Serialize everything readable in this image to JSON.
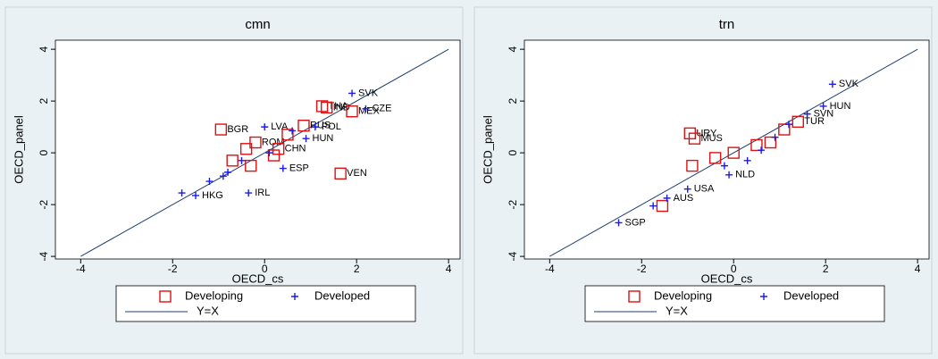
{
  "chart_data": [
    {
      "type": "scatter",
      "title": "cmn",
      "xlabel": "OECD_cs",
      "ylabel": "OECD_panel",
      "xlim": [
        -4.55,
        4.25
      ],
      "ylim": [
        -4.1,
        4.35
      ],
      "xticks": [
        -4,
        -2,
        0,
        2,
        4
      ],
      "yticks": [
        -4,
        -2,
        0,
        2,
        4
      ],
      "series": [
        {
          "name": "Developing",
          "marker": "square",
          "color": "#dd1111",
          "x": [
            1.25,
            1.35,
            1.9,
            -0.95,
            0.85,
            -0.2,
            0.3,
            1.65,
            -0.7,
            -0.4,
            -0.3,
            0.5,
            0.2
          ],
          "values": [
            1.8,
            1.75,
            1.6,
            0.9,
            1.05,
            0.4,
            0.15,
            -0.8,
            -0.3,
            0.15,
            -0.5,
            0.7,
            -0.1
          ],
          "labels": [
            "THA",
            "IND",
            "MEX",
            "BGR",
            "RUS",
            "ROM",
            "CHN",
            "VEN",
            null,
            null,
            null,
            null,
            null
          ]
        },
        {
          "name": "Developed",
          "marker": "plus",
          "color": "#1a1aee",
          "x": [
            1.9,
            2.2,
            0.0,
            0.9,
            1.1,
            0.4,
            -0.35,
            -1.8,
            -1.5,
            -1.2,
            -0.8,
            0.6,
            0.1,
            -0.5,
            -0.9
          ],
          "values": [
            2.3,
            1.7,
            1.0,
            0.55,
            1.0,
            -0.6,
            -1.55,
            -1.55,
            -1.65,
            -1.1,
            -0.75,
            0.85,
            0.0,
            -0.3,
            -0.9
          ],
          "labels": [
            "SVK",
            "CZE",
            "LVA",
            "HUN",
            "POL",
            "ESP",
            "IRL",
            null,
            "HKG",
            null,
            null,
            null,
            null,
            null,
            null
          ]
        }
      ],
      "line": {
        "name": "Y=X",
        "color": "#1f3f6f",
        "x": [
          -4,
          4
        ],
        "values": [
          -4,
          4
        ]
      }
    },
    {
      "type": "scatter",
      "title": "trn",
      "xlabel": "OECD_cs",
      "ylabel": "OECD_panel",
      "xlim": [
        -4.55,
        4.25
      ],
      "ylim": [
        -4.1,
        4.35
      ],
      "xticks": [
        -4,
        -2,
        0,
        2,
        4
      ],
      "yticks": [
        -4,
        -2,
        0,
        2,
        4
      ],
      "series": [
        {
          "name": "Developing",
          "marker": "square",
          "color": "#dd1111",
          "x": [
            1.4,
            -0.95,
            -0.85,
            -0.9,
            -1.55,
            0.5,
            0.0,
            0.8,
            -0.4,
            1.1
          ],
          "values": [
            1.2,
            0.75,
            0.55,
            -0.5,
            -2.05,
            0.3,
            0.0,
            0.4,
            -0.2,
            0.9
          ],
          "labels": [
            "TUR",
            "URY",
            "MUS",
            null,
            null,
            null,
            null,
            null,
            null,
            null
          ]
        },
        {
          "name": "Developed",
          "marker": "plus",
          "color": "#1a1aee",
          "x": [
            2.15,
            1.95,
            1.6,
            -1.0,
            -1.45,
            -1.75,
            -2.5,
            -0.1,
            0.9,
            0.3,
            -0.2,
            1.2,
            0.6
          ],
          "values": [
            2.65,
            1.8,
            1.5,
            -1.4,
            -1.75,
            -2.05,
            -2.7,
            -0.85,
            0.6,
            -0.3,
            -0.5,
            1.1,
            0.1
          ],
          "labels": [
            "SVK",
            "HUN",
            "SVN",
            "USA",
            "AUS",
            null,
            "SGP",
            "NLD",
            null,
            null,
            null,
            null,
            null
          ]
        }
      ],
      "line": {
        "name": "Y=X",
        "color": "#1f3f6f",
        "x": [
          -4,
          4
        ],
        "values": [
          -4,
          4
        ]
      }
    }
  ]
}
